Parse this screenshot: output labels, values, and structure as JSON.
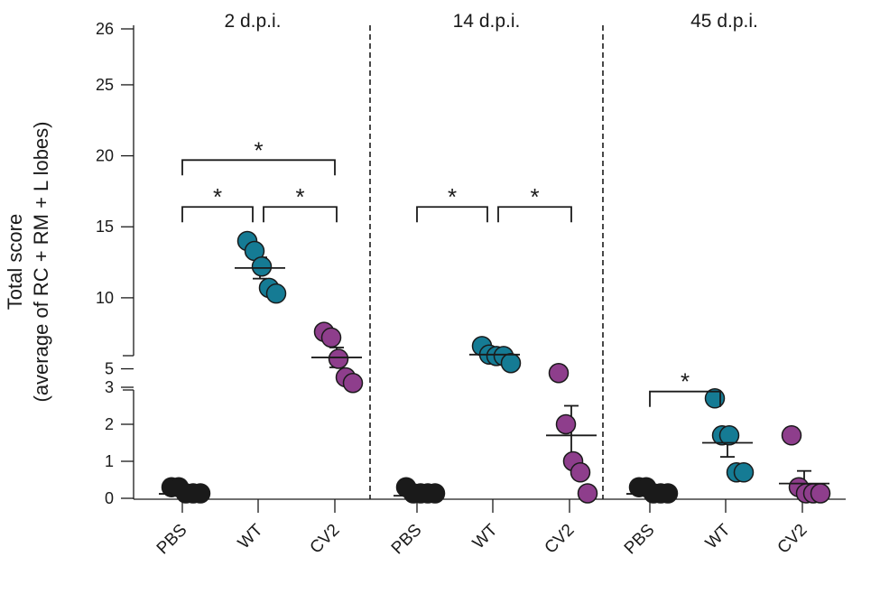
{
  "chart_data": {
    "type": "scatter",
    "ylabel": "Total score",
    "ylabel_sub": "(average of RC + RM + L lobes)",
    "y_axis": {
      "broken": true,
      "lower_segment": [
        0,
        3
      ],
      "upper_segment": [
        3,
        26
      ],
      "ticks": [
        0,
        1,
        2,
        3,
        5,
        10,
        15,
        20,
        25,
        26
      ]
    },
    "colors": {
      "PBS": "#1a1a1a",
      "WT": "#157b94",
      "CV2": "#8e3e8c"
    },
    "categories": [
      "PBS",
      "WT",
      "CV2"
    ],
    "panels": [
      {
        "title": "2 d.p.i.",
        "groups": [
          {
            "name": "PBS",
            "points": [
              0.3,
              0.3,
              0.05,
              0.05,
              0.05
            ],
            "mean": 0.12,
            "sem": 0.06
          },
          {
            "name": "WT",
            "points": [
              14.0,
              13.3,
              12.2,
              10.7,
              10.3
            ],
            "mean": 12.1,
            "sem": 0.75
          },
          {
            "name": "CV2",
            "points": [
              7.6,
              7.2,
              5.7,
              4.4,
              4.0
            ],
            "mean": 5.8,
            "sem": 0.7
          }
        ],
        "significance": [
          {
            "from": "PBS",
            "to": "CV2",
            "y": 19.7,
            "label": "*"
          },
          {
            "from": "PBS",
            "to": "WT",
            "y": 16.4,
            "label": "*"
          },
          {
            "from": "WT",
            "to": "CV2",
            "y": 16.4,
            "label": "*"
          }
        ]
      },
      {
        "title": "14 d.p.i.",
        "groups": [
          {
            "name": "PBS",
            "points": [
              0.3,
              0.05,
              0.05,
              0.05,
              0.05
            ],
            "mean": 0.07,
            "sem": 0.05
          },
          {
            "name": "WT",
            "points": [
              6.6,
              6.0,
              5.9,
              5.9,
              5.4
            ],
            "mean": 6.0,
            "sem": 0.15
          },
          {
            "name": "CV2",
            "points": [
              4.7,
              2.0,
              1.0,
              0.7,
              0.0
            ],
            "mean": 1.7,
            "sem": 0.8
          }
        ],
        "significance": [
          {
            "from": "PBS",
            "to": "WT",
            "y": 16.4,
            "label": "*"
          },
          {
            "from": "WT",
            "to": "CV2",
            "y": 16.4,
            "label": "*"
          }
        ]
      },
      {
        "title": "45 d.p.i.",
        "groups": [
          {
            "name": "PBS",
            "points": [
              0.3,
              0.3,
              0.05,
              0.05,
              0.05
            ],
            "mean": 0.12,
            "sem": 0.05
          },
          {
            "name": "WT",
            "points": [
              2.7,
              1.7,
              1.7,
              0.7,
              0.7
            ],
            "mean": 1.5,
            "sem": 0.38
          },
          {
            "name": "CV2",
            "points": [
              1.7,
              0.3,
              0.0,
              0.0,
              0.0
            ],
            "mean": 0.4,
            "sem": 0.34
          }
        ],
        "significance": [
          {
            "from": "PBS",
            "to": "WT",
            "y": 3.4,
            "label": "*"
          }
        ]
      }
    ]
  }
}
